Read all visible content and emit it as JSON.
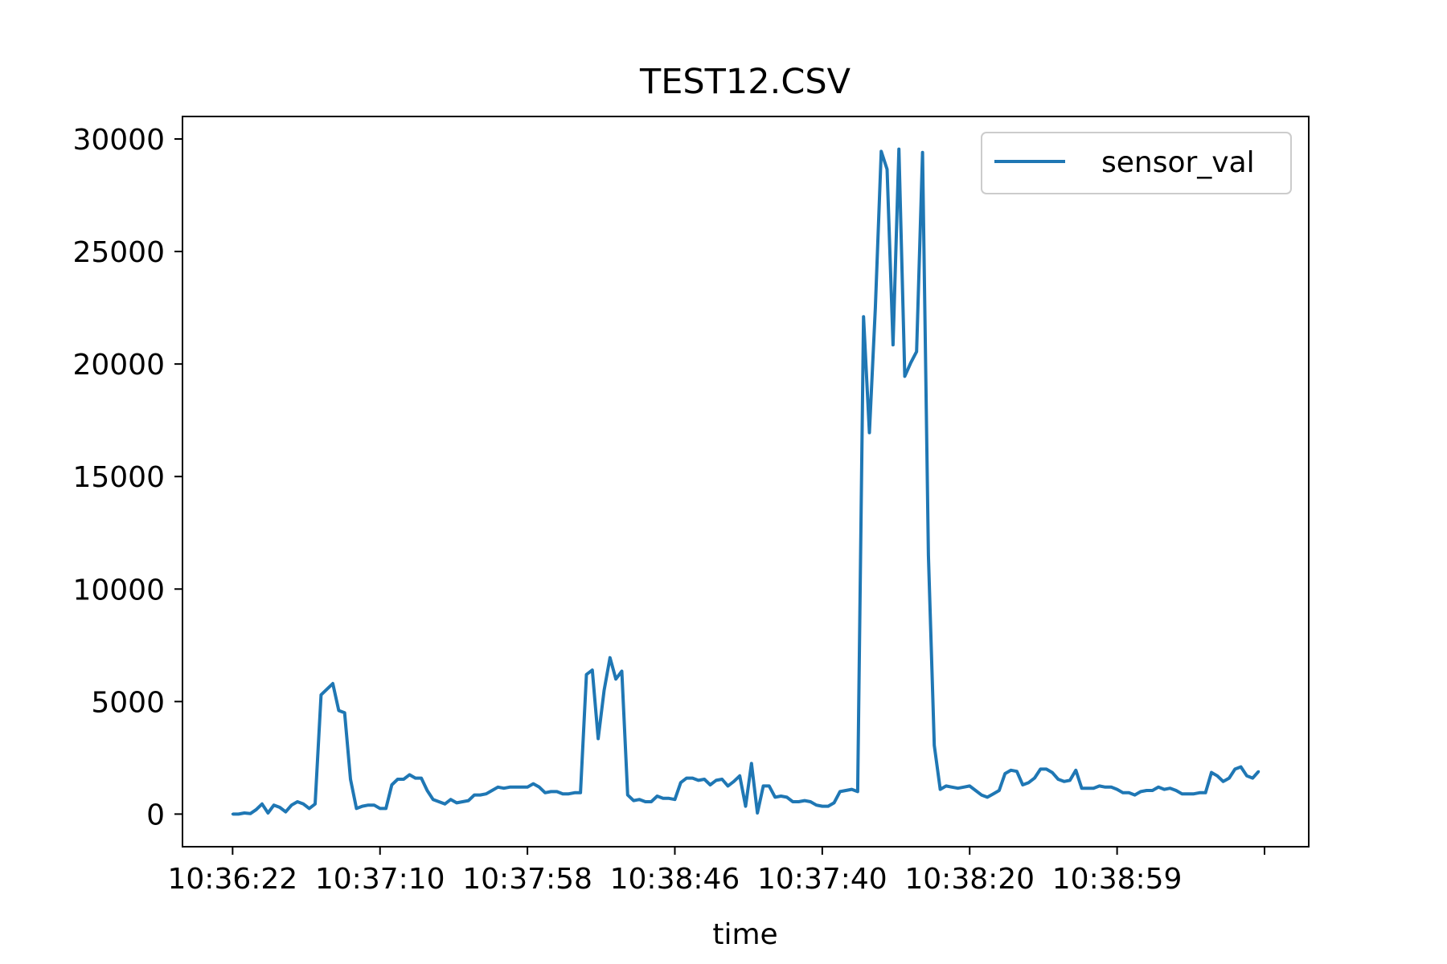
{
  "chart_data": {
    "type": "line",
    "title": "TEST12.CSV",
    "xlabel": "time",
    "ylabel": "",
    "x_tick_labels": [
      "10:36:22",
      "10:37:10",
      "10:37:58",
      "10:38:46",
      "10:37:40",
      "10:38:20",
      "10:38:59",
      ""
    ],
    "x_tick_indices": [
      0,
      25,
      50,
      75,
      100,
      125,
      150,
      175
    ],
    "xlim": [
      -8.5,
      182.5
    ],
    "ylim": [
      -1450,
      31000
    ],
    "y_ticks": [
      0,
      5000,
      10000,
      15000,
      20000,
      25000,
      30000
    ],
    "y_tick_labels": [
      "0",
      "5000",
      "10000",
      "15000",
      "20000",
      "25000",
      "30000"
    ],
    "grid": false,
    "legend_position": "top-right",
    "series": [
      {
        "name": "sensor_val",
        "color": "#1f77b4",
        "values": [
          0,
          0,
          50,
          20,
          200,
          450,
          50,
          400,
          300,
          100,
          400,
          550,
          450,
          250,
          450,
          5300,
          5550,
          5800,
          4600,
          4500,
          1550,
          250,
          350,
          400,
          400,
          250,
          250,
          1300,
          1550,
          1550,
          1750,
          1600,
          1600,
          1050,
          650,
          550,
          450,
          650,
          500,
          550,
          600,
          850,
          850,
          900,
          1050,
          1200,
          1150,
          1200,
          1200,
          1200,
          1200,
          1350,
          1200,
          950,
          1000,
          1000,
          900,
          900,
          950,
          950,
          6200,
          6400,
          3350,
          5500,
          6950,
          6000,
          6350,
          850,
          600,
          650,
          550,
          550,
          800,
          700,
          700,
          650,
          1400,
          1600,
          1600,
          1500,
          1550,
          1300,
          1500,
          1550,
          1250,
          1450,
          1700,
          350,
          2250,
          50,
          1250,
          1250,
          750,
          800,
          750,
          550,
          550,
          600,
          550,
          400,
          350,
          350,
          500,
          1000,
          1050,
          1100,
          1000,
          22100,
          16950,
          22500,
          29450,
          28650,
          20850,
          29550,
          19450,
          20050,
          20550,
          29400,
          11500,
          3050,
          1100,
          1250,
          1200,
          1150,
          1200,
          1250,
          1050,
          850,
          750,
          900,
          1050,
          1800,
          1950,
          1900,
          1300,
          1400,
          1600,
          2000,
          2000,
          1850,
          1550,
          1450,
          1500,
          1950,
          1150,
          1150,
          1150,
          1250,
          1200,
          1200,
          1100,
          950,
          950,
          850,
          1000,
          1050,
          1050,
          1200,
          1100,
          1150,
          1050,
          900,
          900,
          900,
          950,
          950,
          1850,
          1700,
          1450,
          1600,
          2000,
          2100,
          1700,
          1600,
          1900
        ]
      }
    ]
  }
}
